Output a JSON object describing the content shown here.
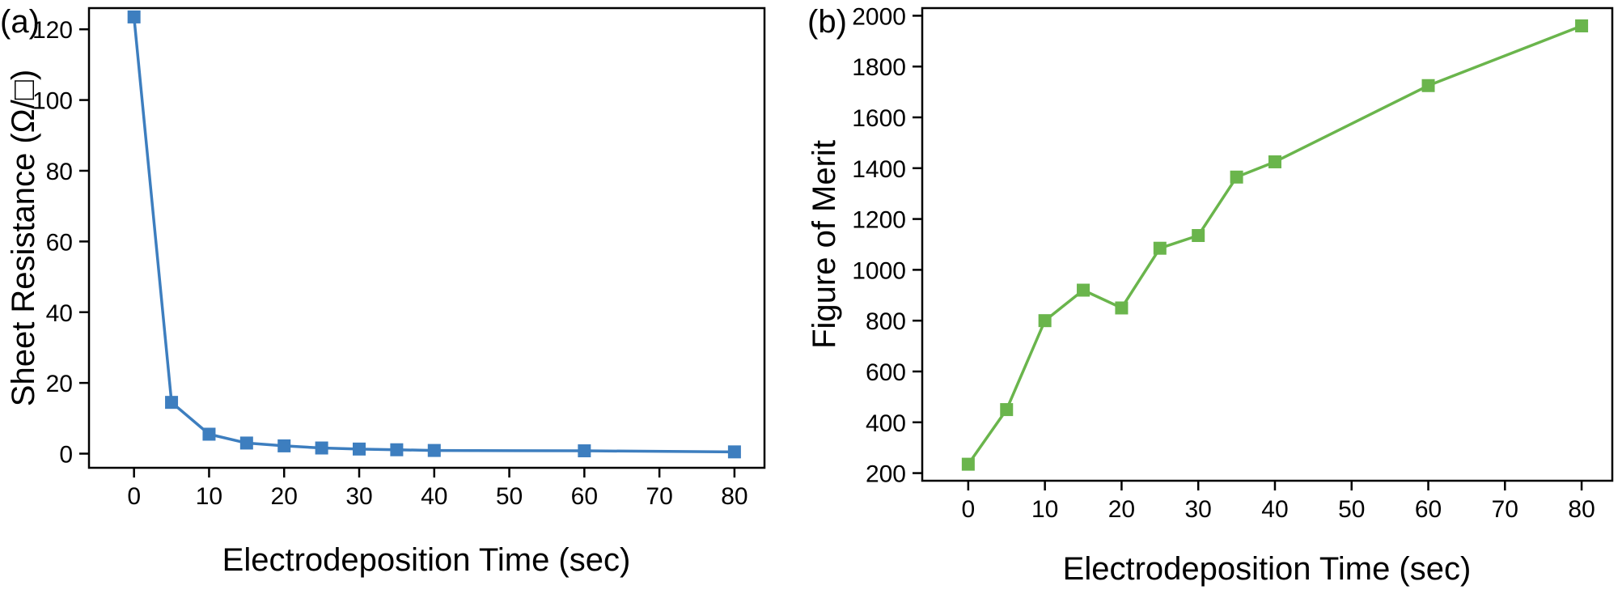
{
  "panels": [
    {
      "label": "(a)",
      "chart_data": {
        "type": "line",
        "title": "",
        "xlabel": "Electrodeposition Time (sec)",
        "ylabel": "Sheet Resistance (Ω/□)",
        "xlim": [
          -6,
          84
        ],
        "ylim": [
          -4,
          126
        ],
        "xticks": [
          0,
          10,
          20,
          30,
          40,
          50,
          60,
          70,
          80
        ],
        "yticks": [
          0,
          20,
          40,
          60,
          80,
          100,
          120
        ],
        "grid": false,
        "legend": "none",
        "series": [
          {
            "color": "#3d7ebf",
            "marker": "square",
            "x": [
              0,
              5,
              10,
              15,
              20,
              25,
              30,
              35,
              40,
              60,
              80
            ],
            "y": [
              123.5,
              14.5,
              5.5,
              3.0,
              2.2,
              1.6,
              1.3,
              1.1,
              0.9,
              0.8,
              0.5
            ]
          }
        ]
      }
    },
    {
      "label": "(b)",
      "chart_data": {
        "type": "line",
        "title": "",
        "xlabel": "Electrodeposition Time (sec)",
        "ylabel": "Figure of Merit",
        "xlim": [
          -6,
          84
        ],
        "ylim": [
          170,
          2030
        ],
        "xticks": [
          0,
          10,
          20,
          30,
          40,
          50,
          60,
          70,
          80
        ],
        "yticks": [
          200,
          400,
          600,
          800,
          1000,
          1200,
          1400,
          1600,
          1800,
          2000
        ],
        "grid": false,
        "legend": "none",
        "series": [
          {
            "color": "#6ab54c",
            "marker": "square",
            "x": [
              0,
              5,
              10,
              15,
              20,
              25,
              30,
              35,
              40,
              60,
              80
            ],
            "y": [
              235,
              450,
              800,
              920,
              850,
              1085,
              1135,
              1365,
              1425,
              1725,
              1960
            ]
          }
        ]
      }
    }
  ]
}
